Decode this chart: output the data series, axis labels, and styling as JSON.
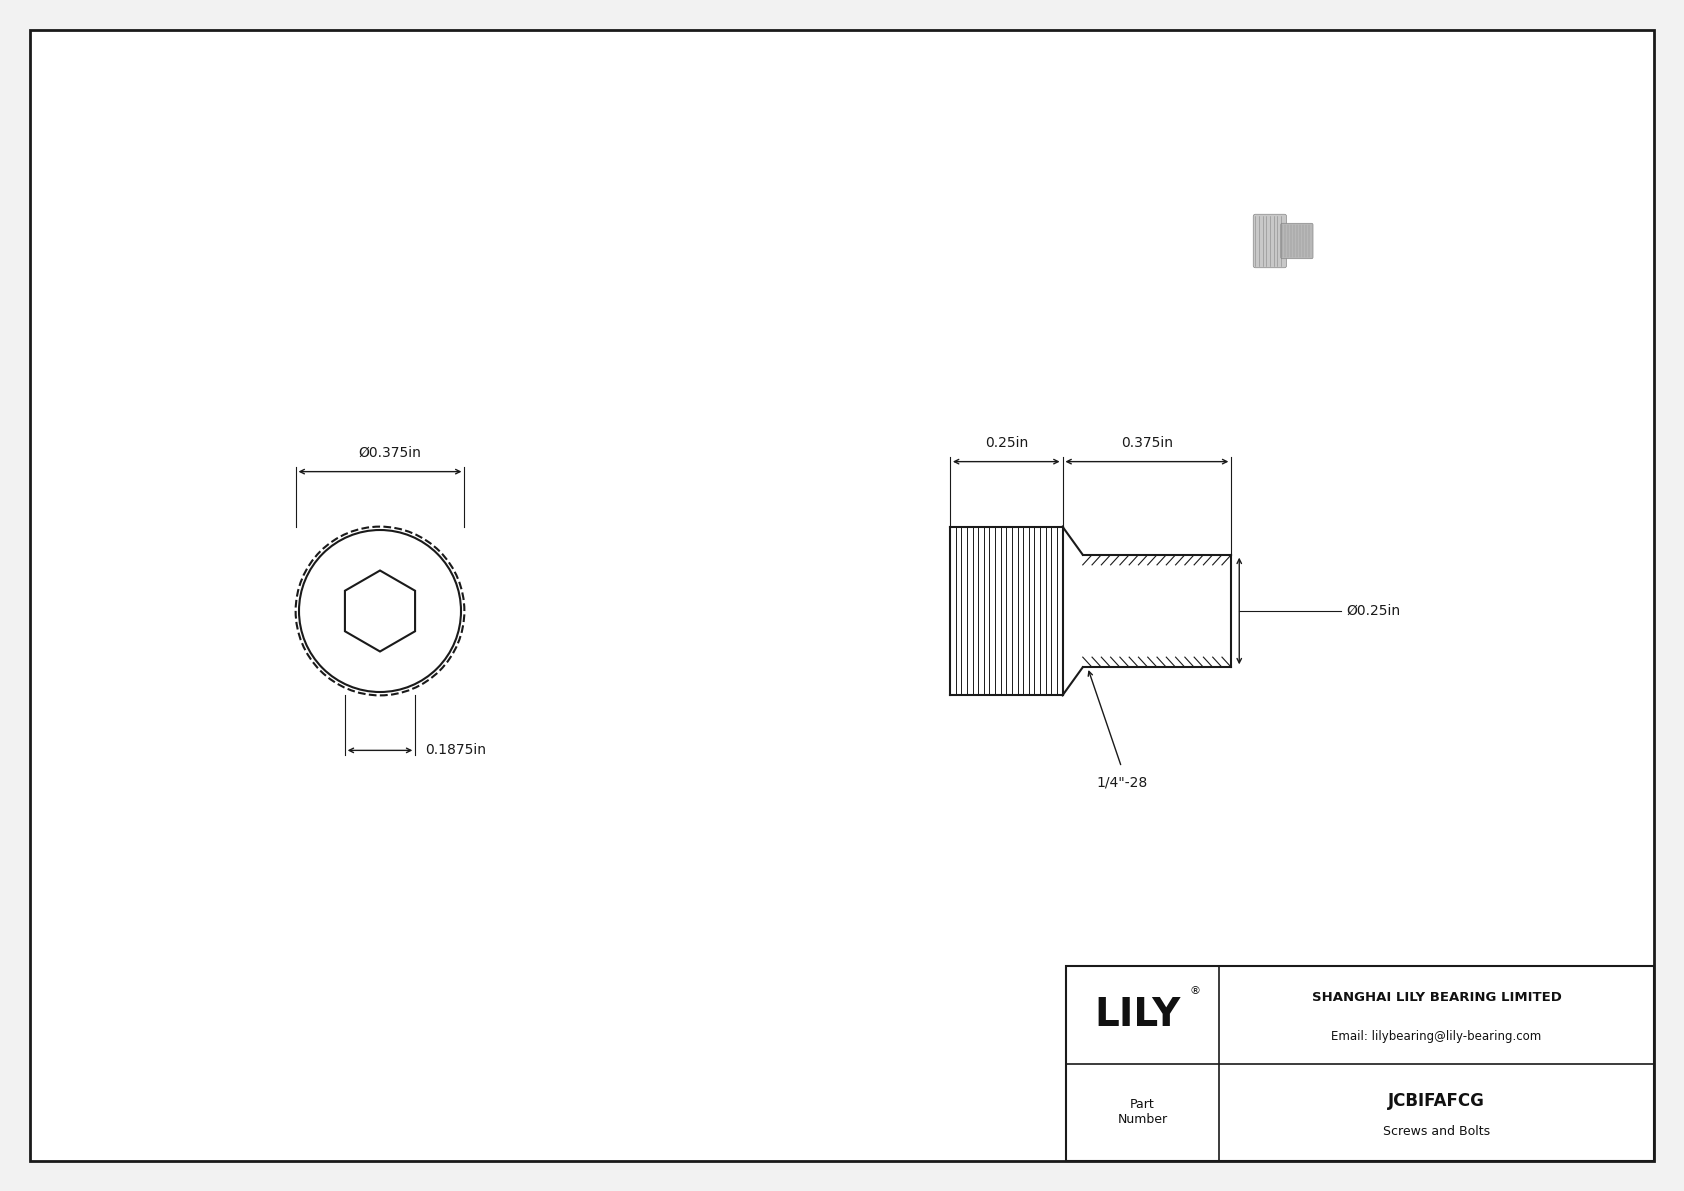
{
  "bg_color": "#f2f2f2",
  "drawing_bg": "#ffffff",
  "border_color": "#1a1a1a",
  "line_color": "#1a1a1a",
  "dim_color": "#1a1a1a",
  "title": "JCBIFAFCG",
  "subtitle": "Screws and Bolts",
  "company": "SHANGHAI LILY BEARING LIMITED",
  "email": "Email: lilybearing@lily-bearing.com",
  "part_label": "Part\nNumber",
  "logo": "LILY",
  "dim_head_diameter": "Ø0.375in",
  "dim_head_height": "0.1875in",
  "dim_thread_length": "0.375in",
  "dim_head_length": "0.25in",
  "dim_thread_diameter": "Ø0.25in",
  "dim_thread_spec": "1/4\"-28"
}
